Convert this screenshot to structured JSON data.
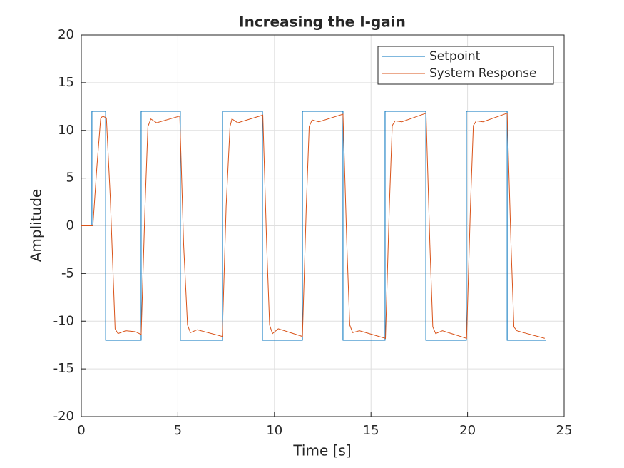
{
  "chart_data": {
    "type": "line",
    "title": "Increasing the I-gain",
    "x_label": "Time [s]",
    "y_label": "Amplitude",
    "xlim": [
      0,
      25
    ],
    "xticks": [
      0,
      5,
      10,
      15,
      20,
      25
    ],
    "ylim": [
      -20,
      20
    ],
    "yticks": [
      -20,
      -15,
      -10,
      -5,
      0,
      5,
      10,
      15,
      20
    ],
    "grid": true,
    "legend_position": "upper-right",
    "series": [
      {
        "name": "Setpoint",
        "color": "#0072bd",
        "x": [
          0,
          0.55,
          0.55,
          1.26,
          1.26,
          3.1,
          3.1,
          5.13,
          5.13,
          7.31,
          7.31,
          9.38,
          9.38,
          11.45,
          11.45,
          13.55,
          13.55,
          15.73,
          15.73,
          17.84,
          17.84,
          19.94,
          19.94,
          22.05,
          22.05,
          24.04
        ],
        "values": [
          0,
          0,
          12,
          12,
          -12,
          -12,
          12,
          12,
          -12,
          -12,
          12,
          12,
          -12,
          -12,
          12,
          12,
          -12,
          -12,
          12,
          12,
          -12,
          -12,
          12,
          12,
          -12,
          -12
        ]
      },
      {
        "name": "System Response",
        "color": "#d95319",
        "x": [
          0,
          0.6,
          0.8,
          1.0,
          1.1,
          1.3,
          1.5,
          1.75,
          1.9,
          2.3,
          2.8,
          3.1,
          3.3,
          3.45,
          3.6,
          3.9,
          5.1,
          5.3,
          5.5,
          5.65,
          6.0,
          7.3,
          7.5,
          7.7,
          7.8,
          8.1,
          9.4,
          9.6,
          9.75,
          9.9,
          10.2,
          11.45,
          11.65,
          11.8,
          11.95,
          12.3,
          13.55,
          13.75,
          13.9,
          14.05,
          14.4,
          15.75,
          15.95,
          16.1,
          16.25,
          16.6,
          17.85,
          18.05,
          18.2,
          18.35,
          18.7,
          19.95,
          20.15,
          20.3,
          20.45,
          20.8,
          22.05,
          22.25,
          22.4,
          22.55,
          22.9,
          24.0
        ],
        "values": [
          0,
          0,
          6,
          11.2,
          11.5,
          11.3,
          3,
          -10.8,
          -11.3,
          -11.0,
          -11.1,
          -11.4,
          2,
          10.4,
          11.2,
          10.8,
          11.5,
          -2,
          -10.4,
          -11.2,
          -10.9,
          -11.6,
          2,
          10.4,
          11.2,
          10.8,
          11.6,
          -2,
          -10.4,
          -11.3,
          -10.8,
          -11.6,
          2,
          10.4,
          11.1,
          10.9,
          11.7,
          -2,
          -10.4,
          -11.2,
          -11.0,
          -11.8,
          2,
          10.5,
          11.0,
          10.9,
          11.8,
          -2,
          -10.6,
          -11.3,
          -11.0,
          -11.8,
          2,
          10.5,
          11.0,
          10.9,
          11.8,
          -2,
          -10.6,
          -11.0,
          -11.2,
          -11.8
        ]
      }
    ]
  }
}
